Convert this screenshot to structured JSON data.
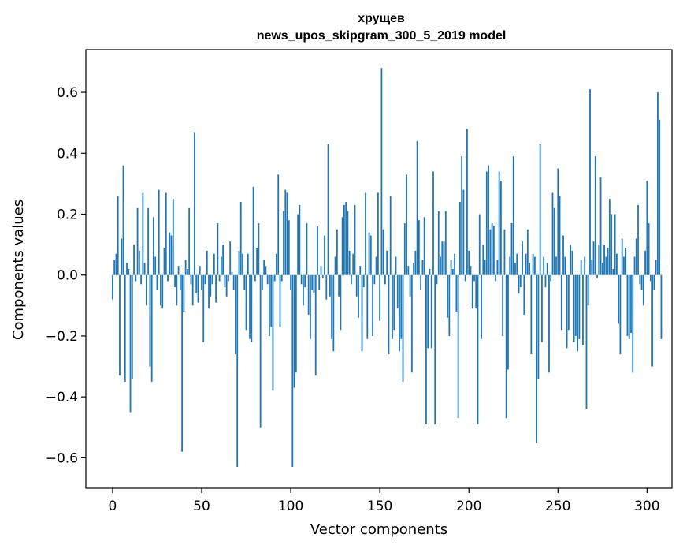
{
  "chart_data": {
    "type": "bar",
    "title": "хрущев",
    "subtitle": "news_upos_skipgram_300_5_2019 model",
    "xlabel": "Vector components",
    "ylabel": "Components values",
    "xlim": [
      -15,
      314
    ],
    "ylim": [
      -0.7,
      0.74
    ],
    "xticks": [
      0,
      50,
      100,
      150,
      200,
      250,
      300
    ],
    "yticks": [
      -0.6,
      -0.4,
      -0.2,
      0.0,
      0.2,
      0.4,
      0.6
    ],
    "xtick_labels": [
      "0",
      "50",
      "100",
      "150",
      "200",
      "250",
      "300"
    ],
    "ytick_labels": [
      "−0.6",
      "−0.4",
      "−0.2",
      "0.0",
      "0.2",
      "0.4",
      "0.6"
    ],
    "bar_color": "#1f77b4",
    "grid": false,
    "values": [
      -0.08,
      0.05,
      0.07,
      0.26,
      -0.33,
      0.12,
      0.36,
      -0.35,
      0.04,
      0.02,
      -0.45,
      -0.34,
      0.1,
      -0.02,
      0.22,
      0.08,
      -0.03,
      0.27,
      0.04,
      -0.1,
      0.22,
      -0.3,
      -0.35,
      0.19,
      0.06,
      -0.05,
      0.28,
      -0.1,
      -0.11,
      0.09,
      0.27,
      -0.02,
      0.14,
      0.13,
      0.25,
      -0.04,
      -0.1,
      0.03,
      -0.05,
      -0.58,
      -0.12,
      0.05,
      0.02,
      0.22,
      -0.03,
      -0.1,
      0.47,
      -0.06,
      -0.09,
      0.03,
      -0.05,
      -0.22,
      -0.03,
      0.08,
      -0.11,
      -0.07,
      -0.03,
      0.07,
      -0.09,
      0.17,
      -0.02,
      0.06,
      0.1,
      -0.04,
      -0.07,
      -0.02,
      0.11,
      0.01,
      -0.05,
      -0.26,
      -0.63,
      0.08,
      0.24,
      0.07,
      -0.05,
      -0.18,
      0.07,
      -0.21,
      -0.22,
      0.29,
      -0.02,
      0.09,
      0.17,
      -0.5,
      -0.05,
      0.05,
      0.03,
      -0.03,
      -0.2,
      -0.17,
      -0.38,
      -0.02,
      0.07,
      0.33,
      -0.17,
      -0.02,
      0.21,
      0.28,
      0.27,
      0.18,
      -0.05,
      -0.63,
      -0.37,
      -0.32,
      0.2,
      0.23,
      -0.03,
      -0.1,
      -0.04,
      0.17,
      -0.13,
      -0.21,
      -0.05,
      -0.06,
      -0.33,
      0.16,
      -0.05,
      0.03,
      -0.01,
      0.13,
      -0.08,
      0.43,
      -0.07,
      -0.21,
      -0.25,
      0.06,
      0.15,
      -0.07,
      -0.18,
      0.19,
      0.23,
      0.24,
      0.21,
      0.08,
      -0.03,
      0.07,
      0.23,
      -0.07,
      -0.14,
      0.03,
      -0.25,
      -0.04,
      0.27,
      -0.21,
      0.14,
      0.13,
      -0.2,
      -0.03,
      0.06,
      0.27,
      -0.15,
      0.68,
      0.15,
      -0.03,
      0.08,
      -0.26,
      0.26,
      -0.21,
      -0.18,
      0.06,
      -0.11,
      -0.25,
      -0.21,
      -0.35,
      0.17,
      0.33,
      0.03,
      -0.07,
      -0.32,
      0.04,
      0.08,
      0.44,
      0.18,
      -0.05,
      0.05,
      0.19,
      -0.49,
      -0.24,
      0.02,
      -0.24,
      0.34,
      -0.49,
      -0.03,
      0.21,
      0.06,
      0.11,
      0.11,
      0.21,
      -0.14,
      -0.2,
      0.05,
      0.02,
      0.07,
      -0.12,
      -0.47,
      0.24,
      0.39,
      0.28,
      -0.02,
      0.48,
      0.08,
      0.03,
      -0.11,
      -0.02,
      -0.11,
      -0.49,
      0.2,
      -0.21,
      0.1,
      0.05,
      0.34,
      0.36,
      0.15,
      0.17,
      0.16,
      -0.02,
      0.05,
      0.34,
      0.31,
      -0.2,
      0.15,
      -0.47,
      -0.31,
      0.06,
      0.17,
      0.39,
      0.04,
      0.07,
      -0.06,
      -0.04,
      0.11,
      -0.13,
      0.07,
      0.15,
      0.04,
      -0.26,
      0.07,
      0.06,
      -0.55,
      -0.34,
      0.43,
      -0.22,
      0.06,
      -0.04,
      0.04,
      -0.32,
      -0.02,
      0.27,
      0.22,
      0.06,
      0.35,
      0.26,
      -0.18,
      0.13,
      0.06,
      -0.24,
      -0.18,
      0.1,
      0.08,
      -0.22,
      -0.2,
      -0.25,
      -0.21,
      0.05,
      -0.23,
      0.06,
      -0.44,
      -0.1,
      0.61,
      0.05,
      0.11,
      0.39,
      -0.01,
      0.1,
      0.32,
      0.04,
      0.1,
      0.06,
      0.09,
      0.25,
      0.2,
      0.02,
      0.2,
      0.07,
      -0.16,
      -0.26,
      0.12,
      0.06,
      0.09,
      -0.2,
      -0.21,
      -0.19,
      -0.32,
      0.06,
      0.12,
      0.23,
      -0.03,
      -0.05,
      -0.1,
      0.08,
      0.31,
      0.17,
      -0.02,
      -0.3,
      -0.05,
      0.05,
      0.6,
      0.51,
      -0.21
    ]
  }
}
